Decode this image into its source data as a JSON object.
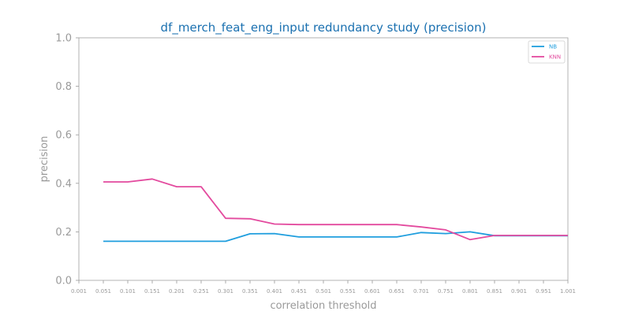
{
  "chart_data": {
    "type": "line",
    "title": "df_merch_feat_eng_input redundancy study (precision)",
    "xlabel": "correlation threshold",
    "ylabel": "precision",
    "categories": [
      "0.001",
      "0.051",
      "0.101",
      "0.151",
      "0.201",
      "0.251",
      "0.301",
      "0.351",
      "0.401",
      "0.451",
      "0.501",
      "0.551",
      "0.601",
      "0.651",
      "0.701",
      "0.751",
      "0.801",
      "0.851",
      "0.901",
      "0.951",
      "1.001"
    ],
    "ylim": [
      0,
      1.0
    ],
    "yticks": [
      "0.0",
      "0.2",
      "0.4",
      "0.6",
      "0.8",
      "1.0"
    ],
    "grid": false,
    "legend": "top-right",
    "series": [
      {
        "name": "NB",
        "color": "#1f9ede",
        "values": [
          null,
          0.161,
          0.161,
          0.161,
          0.161,
          0.161,
          0.161,
          0.192,
          0.193,
          0.179,
          0.179,
          0.179,
          0.179,
          0.179,
          0.197,
          0.193,
          0.2,
          0.184,
          0.184,
          0.184,
          0.184
        ]
      },
      {
        "name": "KNN",
        "color": "#e34a9e",
        "values": [
          null,
          0.406,
          0.406,
          0.418,
          0.386,
          0.386,
          0.256,
          0.254,
          0.232,
          0.23,
          0.23,
          0.23,
          0.23,
          0.23,
          0.22,
          0.208,
          0.168,
          0.185,
          0.185,
          0.185,
          0.185
        ]
      }
    ],
    "title_color": "#1a70b0",
    "axis_color": "#9a9a9a"
  }
}
